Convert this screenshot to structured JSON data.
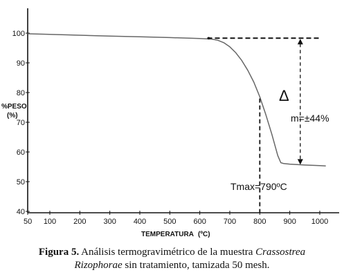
{
  "chart_data": {
    "type": "line",
    "title": "",
    "xlabel": "TEMPERATURA",
    "xlabel_unit": "(ºC)",
    "ylabel": "%PESO",
    "ylabel_unit": "(%)",
    "xlim": [
      50,
      1030
    ],
    "ylim": [
      40,
      108
    ],
    "x_ticks": [
      50,
      100,
      200,
      300,
      400,
      500,
      600,
      700,
      800,
      900,
      1000
    ],
    "y_ticks": [
      40,
      50,
      60,
      70,
      80,
      90,
      100
    ],
    "grid": false,
    "series": [
      {
        "x": [
          50,
          100,
          200,
          300,
          400,
          500,
          600,
          640,
          660,
          680,
          700,
          720,
          740,
          760,
          780,
          800,
          820,
          840,
          860,
          870,
          880,
          900,
          950,
          1000,
          1020
        ],
        "y": [
          99.8,
          99.6,
          99.3,
          99.0,
          98.8,
          98.5,
          98.2,
          98.0,
          97.6,
          96.8,
          95.4,
          93.4,
          90.8,
          87.5,
          83.5,
          78.6,
          72.6,
          66.0,
          58.8,
          56.4,
          56.1,
          55.9,
          55.6,
          55.4,
          55.3
        ]
      }
    ],
    "annotations": {
      "delta_symbol": "Δ",
      "delta_text": "m=±44%",
      "tmax_label": "Tmax=790ºC",
      "ref_line_y": 98.3,
      "ref_line_x_start": 625,
      "ref_line_x_end": 1000,
      "arrow_x": 935,
      "arrow_top_y": 98.3,
      "arrow_bottom_y": 55.5,
      "tmax_x": 800,
      "tmax_top_y": 78
    }
  },
  "caption": {
    "label": "Figura 5.",
    "text_before_species": " Análisis termogravimétrico de la muestra ",
    "species_line1": "Crassostrea",
    "species_line2": "Rizophorae",
    "text_after_species": " sin tratamiento, tamizada 50 mesh."
  },
  "colors": {
    "curve": "#666666",
    "axis": "#111111",
    "annotation": "#111111"
  }
}
